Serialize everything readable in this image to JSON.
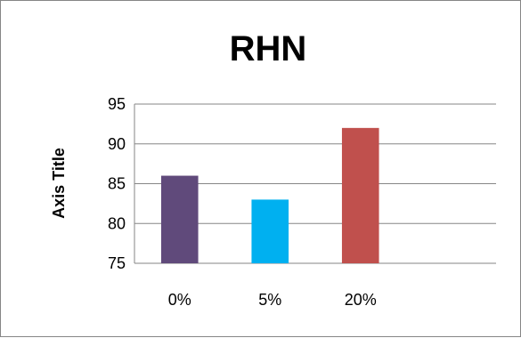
{
  "chart_data": {
    "type": "bar",
    "title": "RHN",
    "ylabel": "Axis Title",
    "xlabel": "",
    "categories": [
      "0%",
      "5%",
      "20%"
    ],
    "values": [
      86,
      83,
      92
    ],
    "ylim": [
      75,
      95
    ],
    "yticks": [
      75,
      80,
      85,
      90,
      95
    ],
    "ytick_labels": [
      "75",
      "80",
      "85",
      "90",
      "95"
    ],
    "bar_colors": [
      "#604a7b",
      "#00b0f0",
      "#c0504d"
    ],
    "grid": true,
    "legend": "none"
  }
}
